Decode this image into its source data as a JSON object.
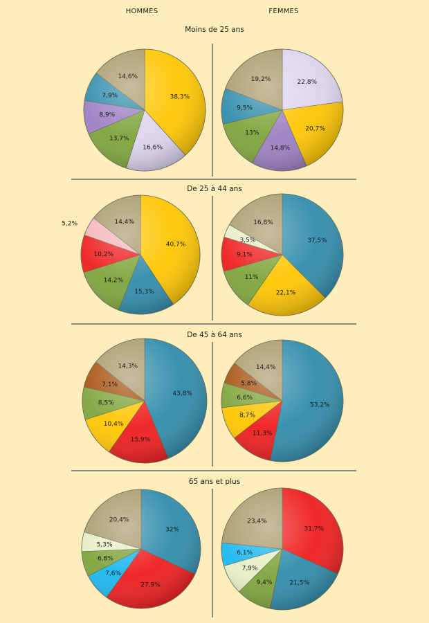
{
  "headers": {
    "left": "HOMMES",
    "right": "FEMMES"
  },
  "chart_data": [
    {
      "type": "pie",
      "title": "Moins de 25 ans",
      "hommes": [
        {
          "value": "38,3%",
          "pct": 38.3,
          "color": "#ffc600"
        },
        {
          "value": "16,6%",
          "pct": 16.6,
          "color": "#dcd4ee"
        },
        {
          "value": "13,7%",
          "pct": 13.7,
          "color": "#7ea43a"
        },
        {
          "value": "8,9%",
          "pct": 8.9,
          "color": "#9c80c2"
        },
        {
          "value": "7,9%",
          "pct": 7.9,
          "color": "#2f8cab"
        },
        {
          "value": "14,6%",
          "pct": 14.6,
          "color": "#a89a6a"
        }
      ],
      "femmes": [
        {
          "value": "22,8%",
          "pct": 22.8,
          "color": "#dcd4ee"
        },
        {
          "value": "20,7%",
          "pct": 20.7,
          "color": "#ffc600"
        },
        {
          "value": "14,8%",
          "pct": 14.8,
          "color": "#9c80c2"
        },
        {
          "value": "13%",
          "pct": 13.0,
          "color": "#7ea43a"
        },
        {
          "value": "9,5%",
          "pct": 9.5,
          "color": "#2f8cab"
        },
        {
          "value": "19,2%",
          "pct": 19.2,
          "color": "#a89a6a"
        }
      ]
    },
    {
      "type": "pie",
      "title": "De 25 à 44 ans",
      "hommes": [
        {
          "value": "40,7%",
          "pct": 40.7,
          "color": "#ffc600"
        },
        {
          "value": "15,3%",
          "pct": 15.3,
          "color": "#2f8cab"
        },
        {
          "value": "14,2%",
          "pct": 14.2,
          "color": "#7ea43a"
        },
        {
          "value": "10,2%",
          "pct": 10.2,
          "color": "#ee1c1c"
        },
        {
          "value": "5,2%",
          "pct": 5.2,
          "color": "#f4b4b8"
        },
        {
          "value": "14,4%",
          "pct": 14.4,
          "color": "#a89a6a"
        }
      ],
      "femmes": [
        {
          "value": "37,5%",
          "pct": 37.5,
          "color": "#2f8cab"
        },
        {
          "value": "22,1%",
          "pct": 22.1,
          "color": "#ffc600"
        },
        {
          "value": "11%",
          "pct": 11.0,
          "color": "#7ea43a"
        },
        {
          "value": "9,1%",
          "pct": 9.1,
          "color": "#ee1c1c"
        },
        {
          "value": "3,5%",
          "pct": 3.5,
          "color": "#e6efc4"
        },
        {
          "value": "16,8%",
          "pct": 16.8,
          "color": "#a89a6a"
        }
      ]
    },
    {
      "type": "pie",
      "title": "De 45 à 64 ans",
      "hommes": [
        {
          "value": "43,8%",
          "pct": 43.8,
          "color": "#2f8cab"
        },
        {
          "value": "15,9%",
          "pct": 15.9,
          "color": "#ee1c1c"
        },
        {
          "value": "10,4%",
          "pct": 10.4,
          "color": "#ffc600"
        },
        {
          "value": "8,5%",
          "pct": 8.5,
          "color": "#7ea43a"
        },
        {
          "value": "7,1%",
          "pct": 7.1,
          "color": "#a64f0c"
        },
        {
          "value": "14,3%",
          "pct": 14.3,
          "color": "#a89a6a"
        }
      ],
      "femmes": [
        {
          "value": "53,2%",
          "pct": 53.2,
          "color": "#2f8cab"
        },
        {
          "value": "11,3%",
          "pct": 11.3,
          "color": "#ee1c1c"
        },
        {
          "value": "8,7%",
          "pct": 8.7,
          "color": "#ffc600"
        },
        {
          "value": "6,6%",
          "pct": 6.6,
          "color": "#7ea43a"
        },
        {
          "value": "5,8%",
          "pct": 5.8,
          "color": "#a64f0c"
        },
        {
          "value": "14,4%",
          "pct": 14.4,
          "color": "#a89a6a"
        }
      ]
    },
    {
      "type": "pie",
      "title": "65 ans et plus",
      "hommes": [
        {
          "value": "32%",
          "pct": 32.0,
          "color": "#2f8cab"
        },
        {
          "value": "27,9%",
          "pct": 27.9,
          "color": "#ee1c1c"
        },
        {
          "value": "7,6%",
          "pct": 7.6,
          "color": "#19b8ee"
        },
        {
          "value": "6,8%",
          "pct": 6.8,
          "color": "#7ea43a"
        },
        {
          "value": "5,3%",
          "pct": 5.3,
          "color": "#e6efc4"
        },
        {
          "value": "20,4%",
          "pct": 20.4,
          "color": "#a89a6a"
        }
      ],
      "femmes": [
        {
          "value": "31,7%",
          "pct": 31.7,
          "color": "#ee1c1c"
        },
        {
          "value": "21,5%",
          "pct": 21.5,
          "color": "#2f8cab"
        },
        {
          "value": "9,4%",
          "pct": 9.4,
          "color": "#7ea43a"
        },
        {
          "value": "7,9%",
          "pct": 7.9,
          "color": "#e6efc4"
        },
        {
          "value": "6,1%",
          "pct": 6.1,
          "color": "#19b8ee"
        },
        {
          "value": "23,4%",
          "pct": 23.4,
          "color": "#a89a6a"
        }
      ]
    }
  ]
}
